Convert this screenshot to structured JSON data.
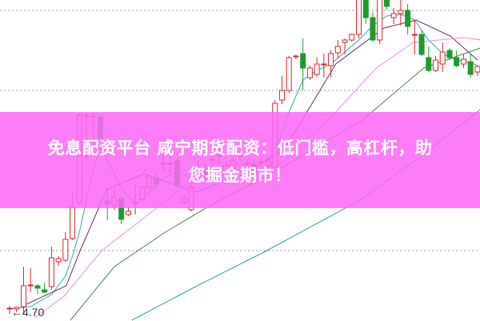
{
  "banner": {
    "line1": "免息配资平台 咸宁期货配资：低门槛，高杠杆，助",
    "line2": "您掘金期市！"
  },
  "chart_data": {
    "type": "candlestick",
    "title": "",
    "grid": true,
    "annotations": [
      {
        "text": "4.70",
        "marker": "arrow-left",
        "candle_index": 2,
        "price": 4.7
      }
    ],
    "colors": {
      "up": "#d8262c",
      "down": "#1c9b2c",
      "ma5": "#2aa9b8",
      "ma10": "#6a2a6a",
      "ma20": "#f08ae8",
      "ma30": "#3c8a3c",
      "ma60": "#2aa0a8",
      "banner": "#fc68f6"
    },
    "candles_ohlc": [
      [
        4.75,
        4.78,
        4.68,
        4.75
      ],
      [
        4.74,
        4.77,
        4.7,
        4.76
      ],
      [
        4.77,
        5.27,
        4.68,
        5.03
      ],
      [
        5.04,
        5.25,
        4.95,
        5.04
      ],
      [
        5.03,
        5.05,
        4.93,
        5.0
      ],
      [
        4.98,
        5.07,
        4.94,
        4.95
      ],
      [
        5.02,
        5.52,
        4.98,
        5.38
      ],
      [
        5.33,
        5.4,
        5.28,
        5.37
      ],
      [
        5.35,
        5.7,
        5.33,
        5.61
      ],
      [
        5.62,
        6.2,
        5.6,
        6.01
      ],
      [
        6.07,
        7.19,
        6.05,
        7.16
      ],
      [
        7.16,
        7.19,
        6.6,
        7.16
      ],
      [
        7.15,
        7.19,
        6.8,
        7.15
      ],
      [
        7.14,
        7.14,
        6.9,
        6.87
      ],
      [
        6.09,
        6.25,
        5.85,
        6.05
      ],
      [
        6.03,
        6.24,
        5.98,
        6.13
      ],
      [
        6.12,
        6.15,
        5.8,
        5.86
      ],
      [
        5.92,
        6.02,
        5.9,
        5.96
      ],
      [
        6.07,
        6.3,
        5.92,
        6.07
      ],
      [
        6.11,
        6.27,
        6.08,
        6.26
      ],
      [
        6.26,
        6.4,
        6.24,
        6.4
      ],
      [
        6.38,
        6.45,
        6.25,
        6.3
      ],
      [
        6.55,
        6.89,
        6.43,
        6.56
      ],
      [
        6.55,
        6.7,
        6.45,
        6.56
      ],
      [
        6.59,
        6.62,
        6.24,
        6.28
      ],
      [
        6.07,
        6.16,
        6.04,
        6.13
      ],
      [
        5.98,
        6.35,
        5.96,
        6.26
      ],
      [
        6.4,
        6.6,
        6.38,
        6.49
      ],
      [
        6.49,
        6.55,
        6.35,
        6.42
      ],
      [
        6.6,
        6.7,
        6.48,
        6.61
      ],
      [
        6.65,
        6.75,
        6.55,
        6.66
      ],
      [
        6.47,
        6.58,
        6.45,
        6.53
      ],
      [
        6.49,
        6.65,
        6.47,
        6.59
      ],
      [
        6.65,
        6.72,
        6.58,
        6.66
      ],
      [
        6.55,
        6.62,
        6.48,
        6.56
      ],
      [
        6.55,
        6.6,
        6.42,
        6.42
      ],
      [
        6.57,
        6.63,
        6.52,
        6.58
      ],
      [
        6.53,
        6.62,
        6.5,
        6.59
      ],
      [
        6.51,
        7.35,
        6.48,
        7.31
      ],
      [
        7.35,
        7.65,
        7.3,
        7.47
      ],
      [
        7.47,
        7.9,
        7.44,
        7.88
      ],
      [
        7.89,
        7.92,
        7.86,
        7.9
      ],
      [
        7.93,
        8.12,
        7.47,
        7.75
      ],
      [
        7.63,
        7.78,
        7.6,
        7.75
      ],
      [
        7.67,
        7.88,
        7.64,
        7.8
      ],
      [
        7.79,
        7.93,
        7.63,
        7.8
      ],
      [
        7.78,
        7.97,
        7.63,
        7.93
      ],
      [
        7.94,
        8.1,
        7.87,
        8.02
      ],
      [
        8.07,
        8.12,
        7.92,
        8.1
      ],
      [
        8.1,
        8.18,
        8.08,
        8.17
      ],
      [
        8.17,
        8.7,
        8.12,
        8.65
      ],
      [
        8.65,
        8.75,
        8.3,
        8.38
      ],
      [
        8.38,
        8.45,
        8.08,
        8.1
      ],
      [
        8.1,
        8.7,
        8.05,
        8.65
      ],
      [
        8.65,
        8.72,
        8.48,
        8.52
      ],
      [
        8.38,
        8.5,
        8.3,
        8.43
      ],
      [
        8.43,
        8.6,
        8.28,
        8.47
      ],
      [
        8.47,
        8.55,
        8.17,
        8.27
      ],
      [
        8.16,
        8.35,
        7.92,
        8.17
      ],
      [
        8.17,
        8.22,
        7.9,
        7.92
      ],
      [
        7.88,
        8.02,
        7.7,
        7.72
      ],
      [
        7.72,
        7.9,
        7.7,
        7.85
      ],
      [
        7.8,
        8.07,
        7.7,
        7.95
      ],
      [
        7.97,
        8.0,
        7.85,
        7.88
      ],
      [
        7.88,
        7.97,
        7.76,
        7.78
      ],
      [
        7.8,
        7.92,
        7.75,
        7.86
      ],
      [
        7.83,
        7.92,
        7.63,
        7.67
      ],
      [
        7.7,
        7.78,
        7.65,
        7.77
      ]
    ],
    "moving_averages": [
      {
        "key": "ma5",
        "points": [
          [
            0,
            4.74
          ],
          [
            3,
            4.77
          ],
          [
            6,
            4.92
          ],
          [
            8,
            5.15
          ],
          [
            9,
            5.4
          ],
          [
            10,
            5.7
          ],
          [
            11,
            6.1
          ],
          [
            12,
            6.5
          ],
          [
            13,
            6.75
          ],
          [
            14,
            6.6
          ],
          [
            16,
            6.25
          ],
          [
            18,
            6.05
          ],
          [
            20,
            6.2
          ],
          [
            22,
            6.38
          ],
          [
            24,
            6.45
          ],
          [
            26,
            6.38
          ],
          [
            28,
            6.45
          ],
          [
            30,
            6.52
          ],
          [
            33,
            6.55
          ],
          [
            36,
            6.55
          ],
          [
            38,
            6.7
          ],
          [
            40,
            7.2
          ],
          [
            42,
            7.6
          ],
          [
            44,
            7.72
          ],
          [
            46,
            7.8
          ],
          [
            48,
            7.95
          ],
          [
            50,
            8.1
          ],
          [
            52,
            8.28
          ],
          [
            54,
            8.4
          ],
          [
            56,
            8.42
          ],
          [
            58,
            8.35
          ],
          [
            60,
            8.1
          ],
          [
            62,
            7.93
          ],
          [
            64,
            7.85
          ],
          [
            66,
            7.82
          ],
          [
            67,
            7.78
          ]
        ]
      },
      {
        "key": "ma10",
        "points": [
          [
            1.7,
            4.77
          ],
          [
            8.1,
            5.03
          ],
          [
            10.1,
            5.47
          ],
          [
            13.9,
            6.23
          ],
          [
            19.2,
            6.43
          ],
          [
            26.7,
            6.2
          ],
          [
            33.7,
            6.43
          ],
          [
            39.4,
            6.74
          ],
          [
            46.7,
            7.8
          ],
          [
            53.6,
            8.25
          ],
          [
            58.2,
            8.35
          ],
          [
            63.1,
            8.15
          ],
          [
            67,
            7.85
          ]
        ]
      },
      {
        "key": "ma20",
        "points": [
          [
            3.6,
            4.63
          ],
          [
            7.8,
            4.9
          ],
          [
            13.2,
            5.47
          ],
          [
            21.5,
            6.03
          ],
          [
            25.3,
            6.3
          ],
          [
            33,
            6.45
          ],
          [
            38.7,
            6.55
          ],
          [
            45.6,
            7.1
          ],
          [
            52.5,
            7.75
          ],
          [
            57.8,
            8.07
          ],
          [
            65.1,
            8.13
          ],
          [
            67.4,
            8.1
          ]
        ]
      },
      {
        "key": "ma30",
        "points": [
          [
            8.7,
            4.6
          ],
          [
            15,
            5.27
          ],
          [
            22.3,
            5.7
          ],
          [
            28.1,
            6.0
          ],
          [
            39.9,
            6.55
          ],
          [
            50.5,
            7.1
          ],
          [
            59.3,
            7.75
          ],
          [
            67.4,
            8.0
          ]
        ]
      },
      {
        "key": "ma60",
        "points": [
          [
            17.5,
            4.6
          ],
          [
            27.3,
            5.05
          ],
          [
            36.4,
            5.45
          ],
          [
            50.2,
            6.1
          ],
          [
            58.2,
            6.6
          ],
          [
            67.4,
            7.23
          ]
        ]
      }
    ]
  }
}
